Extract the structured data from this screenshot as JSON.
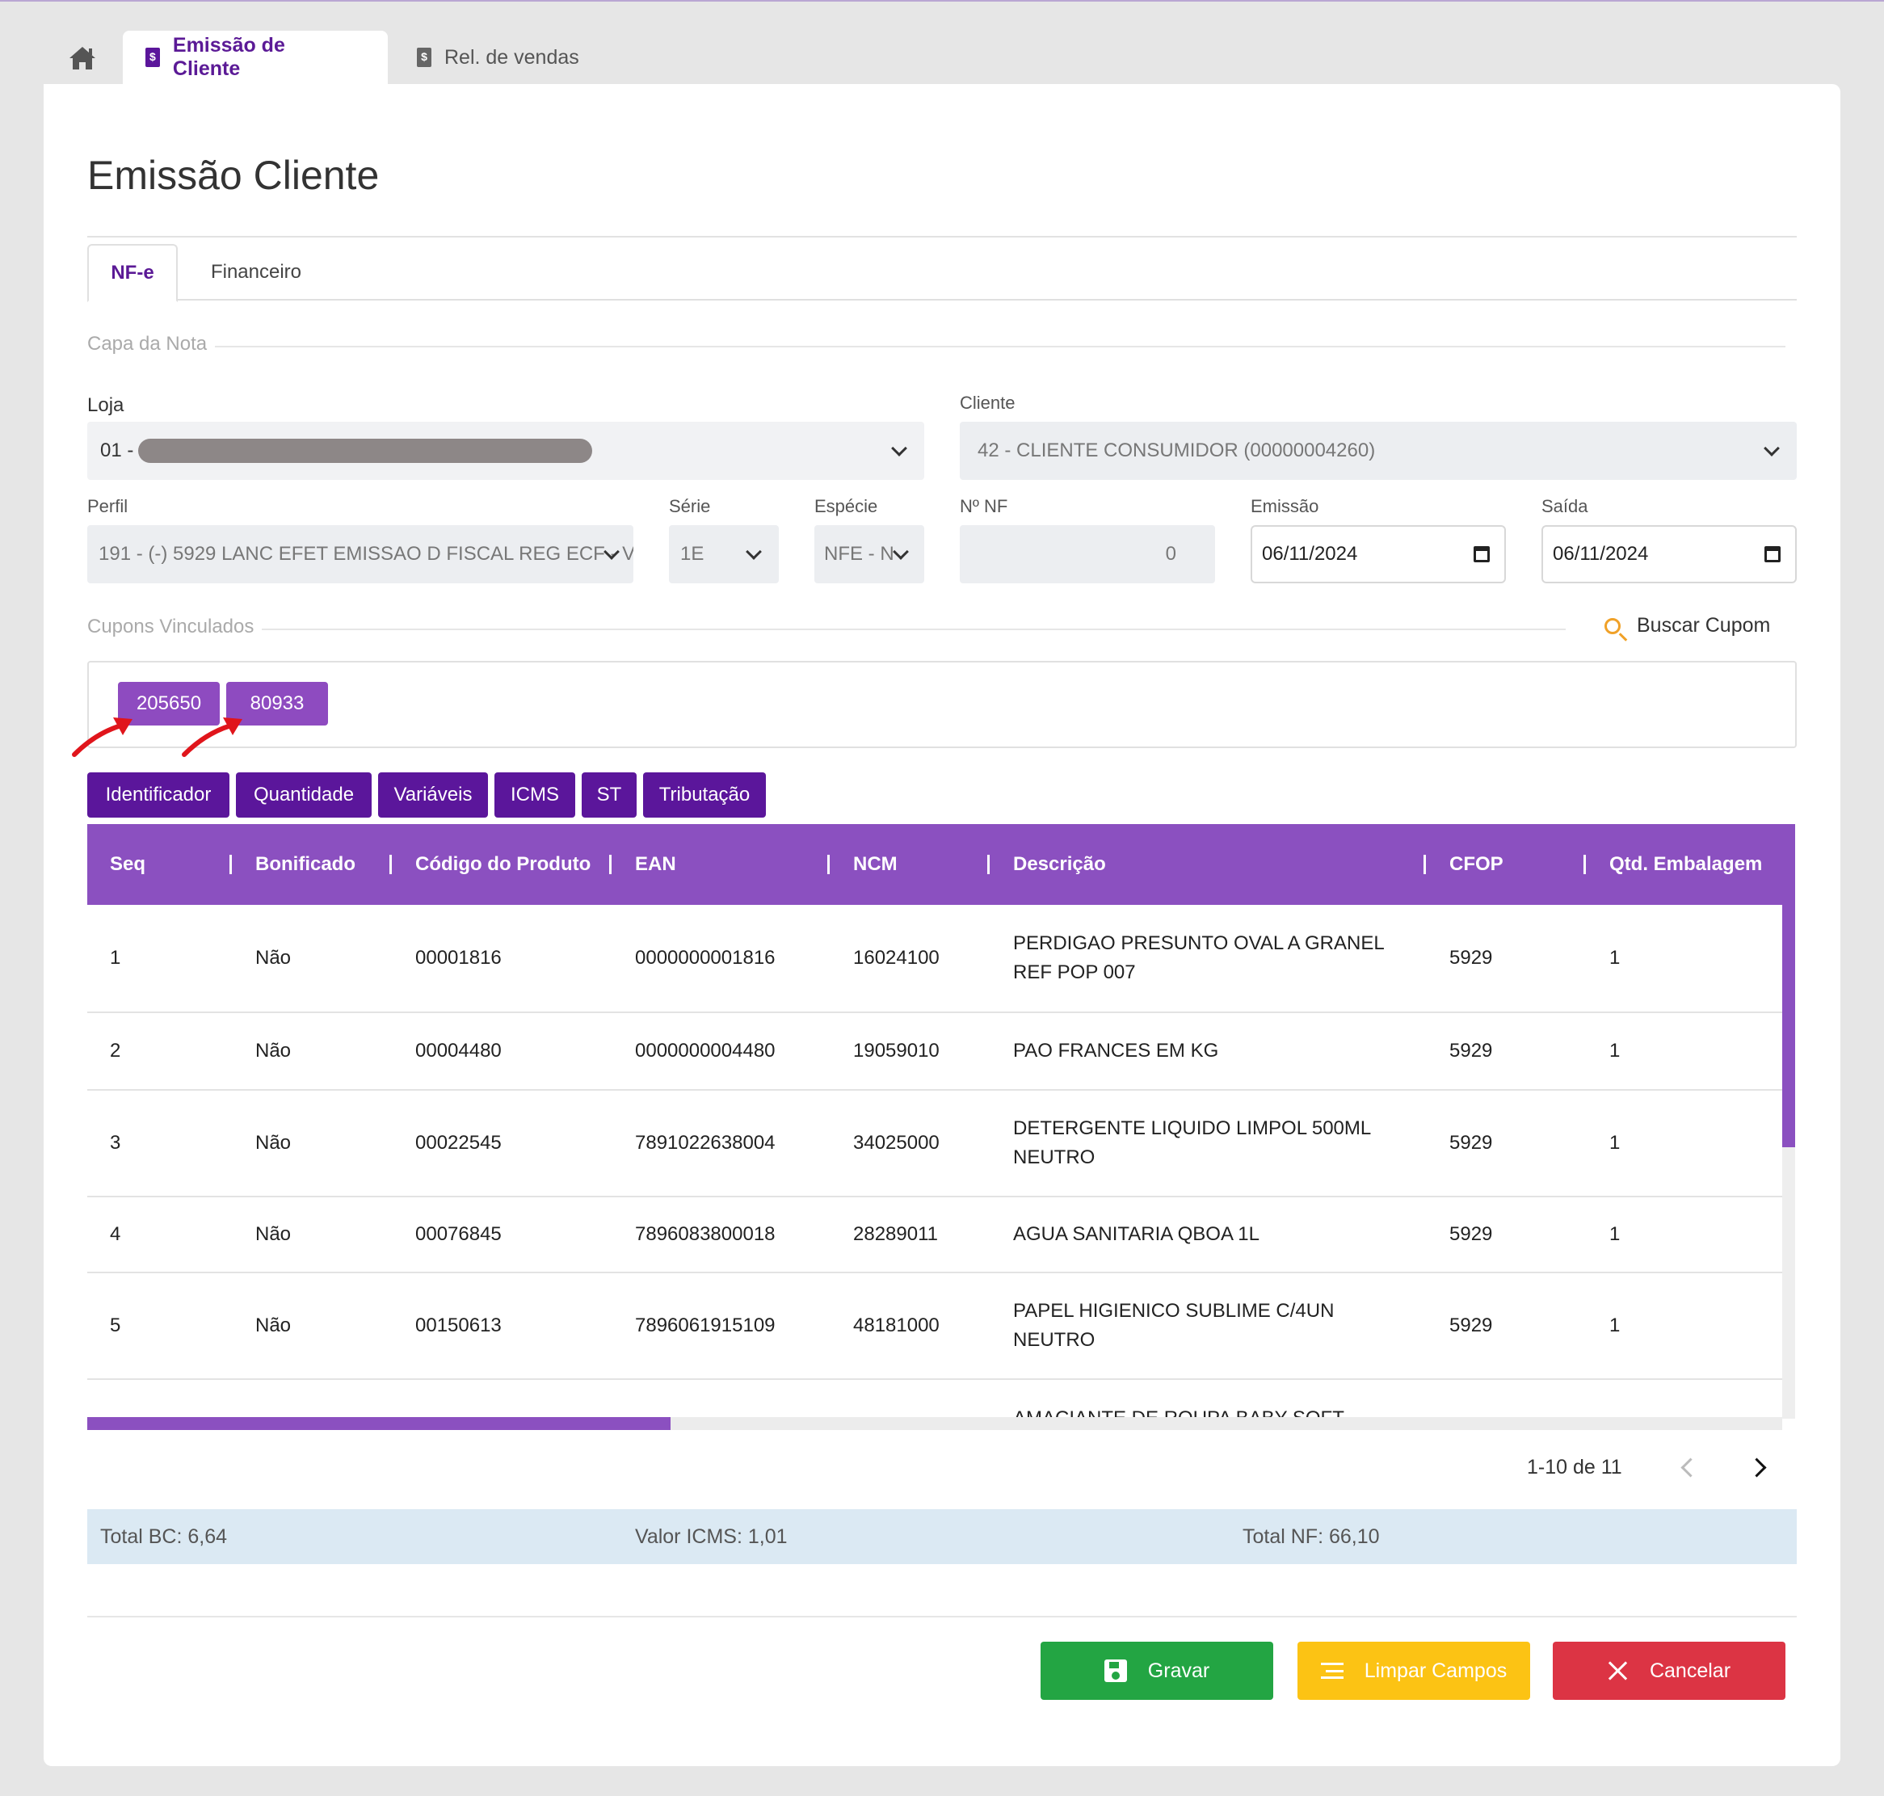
{
  "top_tabs": {
    "home_icon": "home-icon",
    "tabs": [
      {
        "label": "Emissão de Cliente",
        "icon": "invoice-icon",
        "active": true
      },
      {
        "label": "Rel. de vendas",
        "icon": "invoice-icon",
        "active": false
      }
    ]
  },
  "page": {
    "title": "Emissão Cliente"
  },
  "inner_tabs": [
    "NF-e",
    "Financeiro"
  ],
  "capa": {
    "legend": "Capa da Nota",
    "loja": {
      "label": "Loja",
      "value": "01 -"
    },
    "cliente": {
      "label": "Cliente",
      "value": "42 - CLIENTE CONSUMIDOR (00000004260)"
    },
    "perfil": {
      "label": "Perfil",
      "value": "191 - (-) 5929  LANC EFET EMISSAO D FISCAL REG ECF - V"
    },
    "serie": {
      "label": "Série",
      "value": "1E"
    },
    "especie": {
      "label": "Espécie",
      "value": "NFE - N"
    },
    "nf": {
      "label": "Nº NF",
      "value": "0"
    },
    "emissao": {
      "label": "Emissão",
      "value": "06/11/2024"
    },
    "saida": {
      "label": "Saída",
      "value": "06/11/2024"
    }
  },
  "cupons": {
    "legend": "Cupons Vinculados",
    "search_label": "Buscar Cupom",
    "items": [
      "205650",
      "80933"
    ]
  },
  "item_tabs": [
    "Identificador",
    "Quantidade",
    "Variáveis",
    "ICMS",
    "ST",
    "Tributação"
  ],
  "table": {
    "columns": [
      "Seq",
      "Bonificado",
      "Código do Produto",
      "EAN",
      "NCM",
      "Descrição",
      "CFOP",
      "Qtd. Embalagem"
    ],
    "rows": [
      [
        "1",
        "Não",
        "00001816",
        "0000000001816",
        "16024100",
        "PERDIGAO PRESUNTO OVAL A GRANEL REF POP 007",
        "5929",
        "1"
      ],
      [
        "2",
        "Não",
        "00004480",
        "0000000004480",
        "19059010",
        "PAO FRANCES EM KG",
        "5929",
        "1"
      ],
      [
        "3",
        "Não",
        "00022545",
        "7891022638004",
        "34025000",
        "DETERGENTE LIQUIDO LIMPOL 500ML NEUTRO",
        "5929",
        "1"
      ],
      [
        "4",
        "Não",
        "00076845",
        "7896083800018",
        "28289011",
        "AGUA SANITARIA QBOA 1L",
        "5929",
        "1"
      ],
      [
        "5",
        "Não",
        "00150613",
        "7896061915109",
        "48181000",
        "PAPEL HIGIENICO SUBLIME C/4UN NEUTRO",
        "5929",
        "1"
      ],
      [
        "",
        "",
        "",
        "",
        "",
        "AMACIANTE DE ROUPA BABY SOFT",
        "",
        ""
      ]
    ]
  },
  "pagination": {
    "text": "1-10 de 11"
  },
  "totals": {
    "bc": "Total BC: 6,64",
    "icms": "Valor ICMS: 1,01",
    "nf": "Total NF: 66,10"
  },
  "actions": {
    "save": "Gravar",
    "clear": "Limpar Campos",
    "cancel": "Cancelar"
  },
  "colors": {
    "primary_dark": "#5b169b",
    "primary": "#8b50c0",
    "success": "#23a543",
    "warning": "#fcc314",
    "danger": "#dc3444",
    "annotation_arrow": "#e0151b"
  }
}
